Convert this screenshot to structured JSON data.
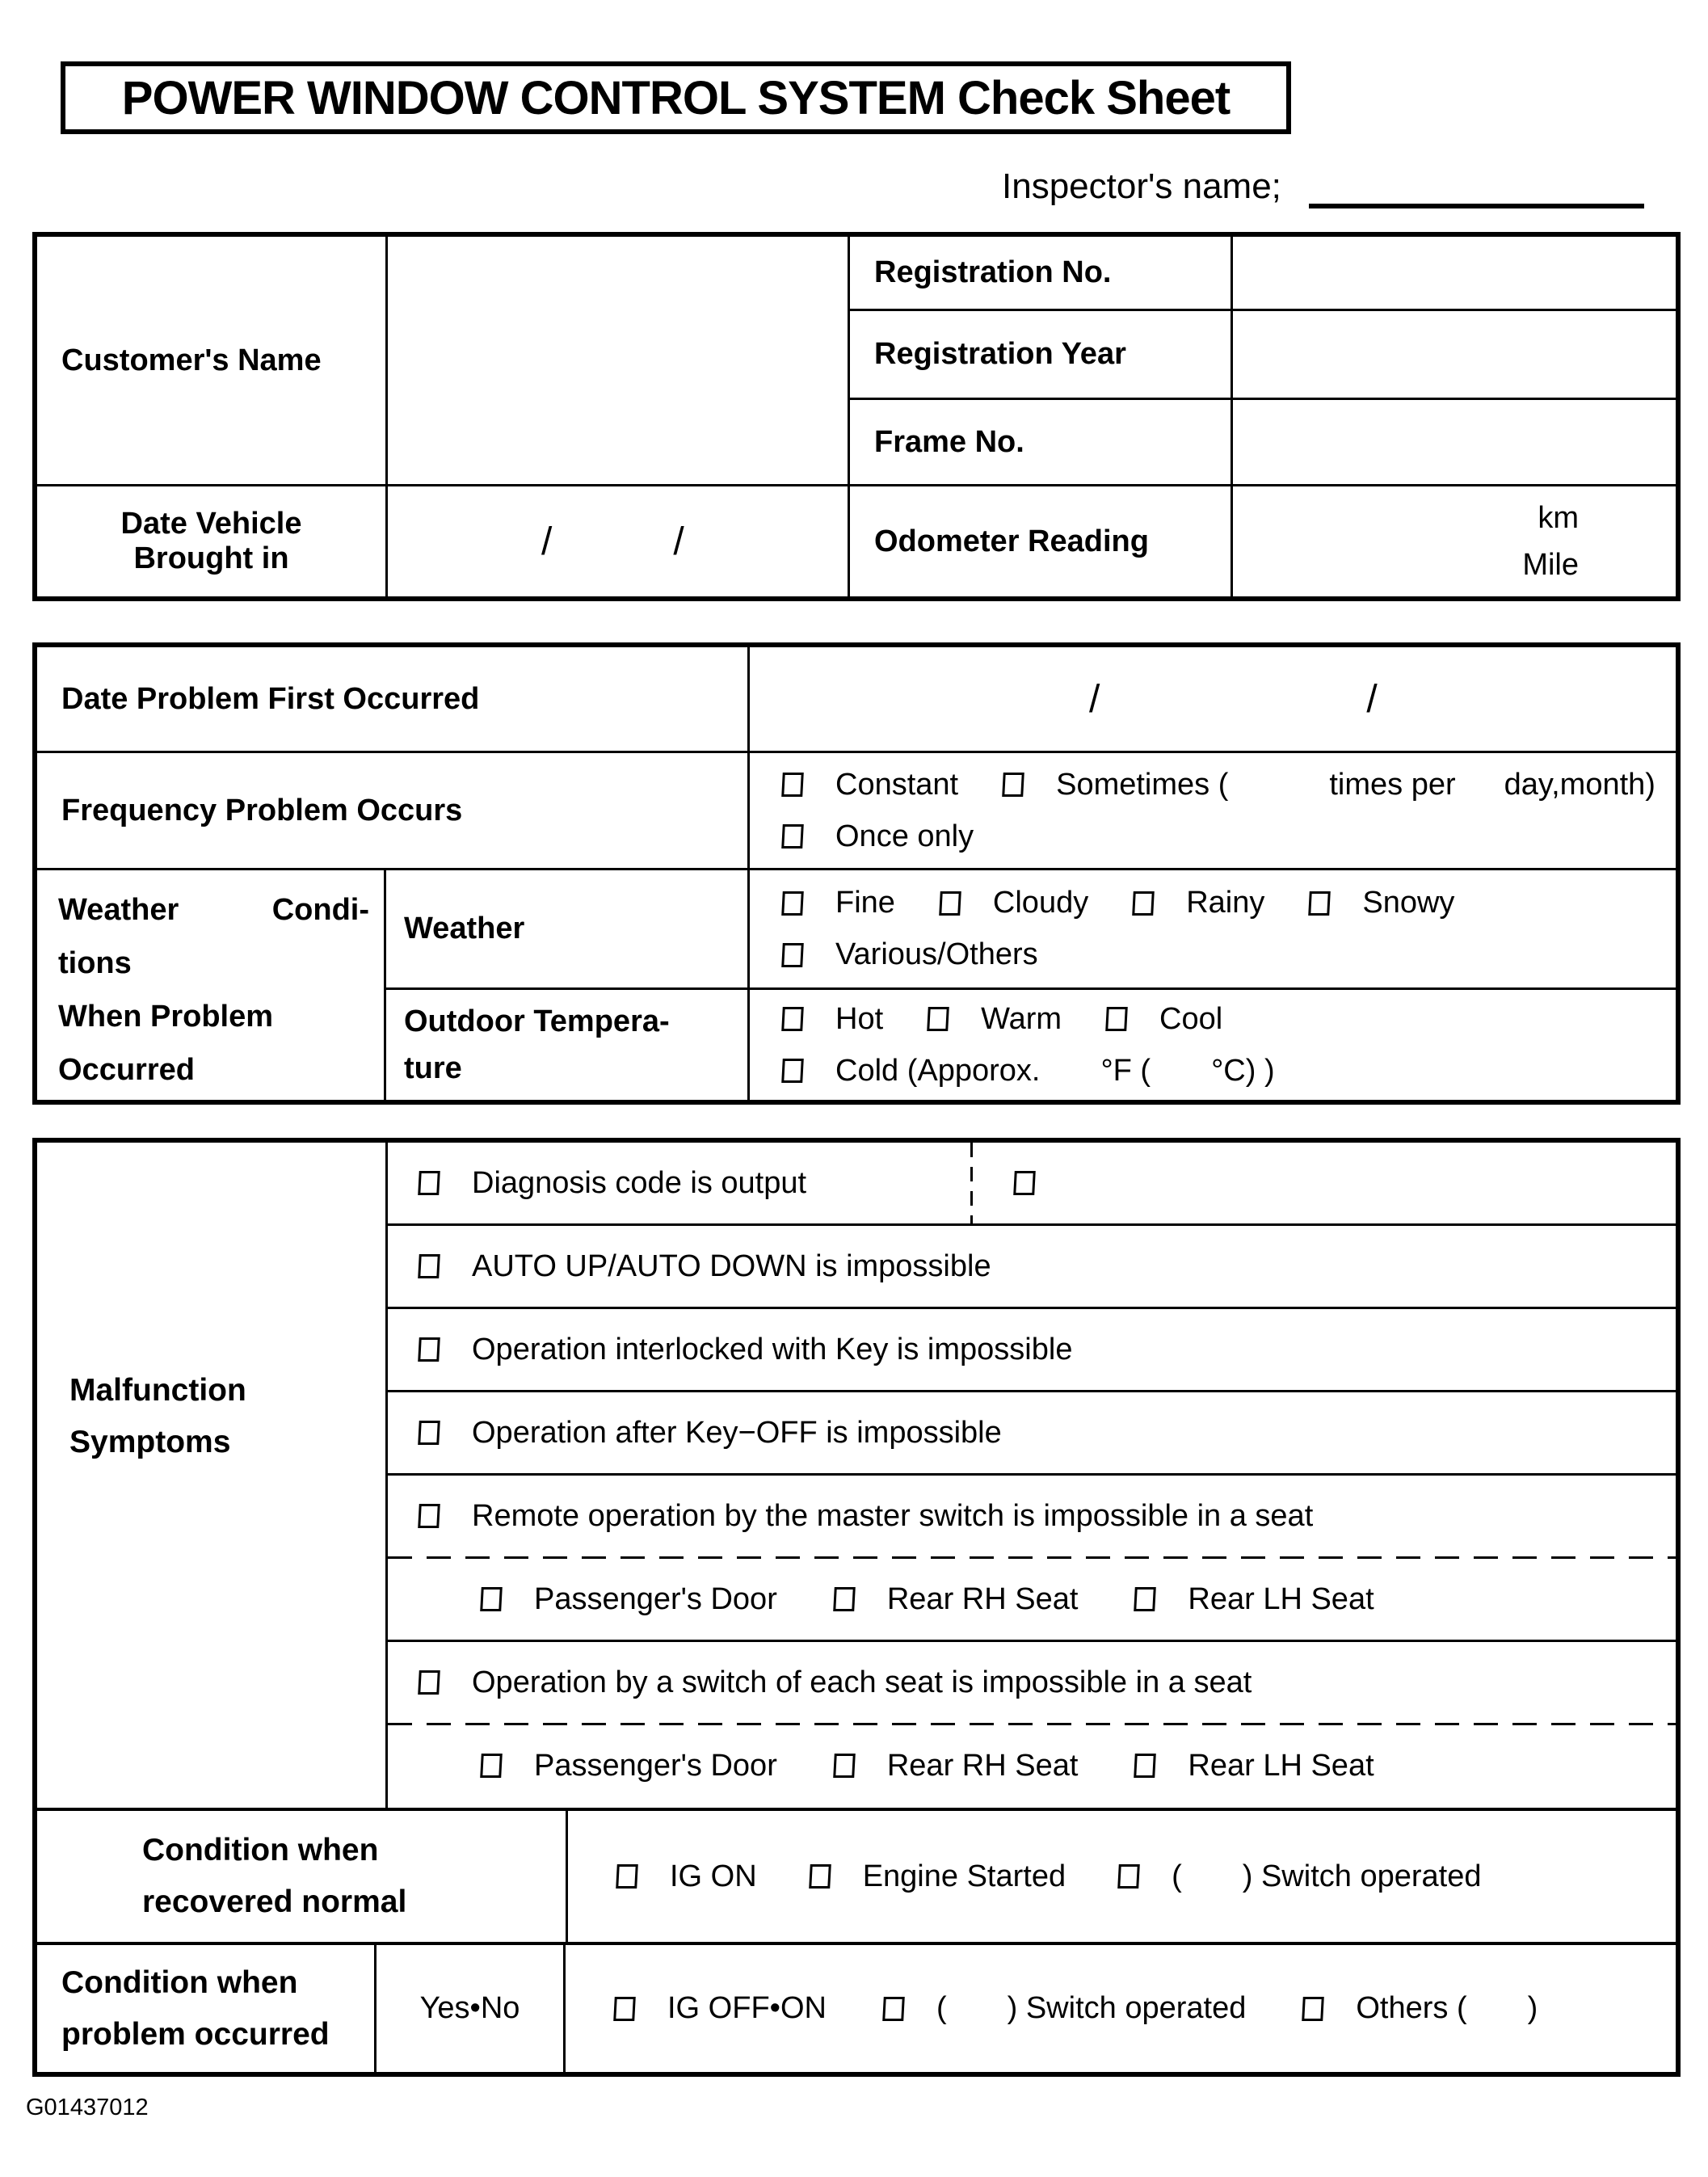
{
  "title": "POWER WINDOW CONTROL SYSTEM Check Sheet",
  "inspector_label": "Inspector's name;",
  "vehicle": {
    "customer_name": "Customer's Name",
    "registration_no": "Registration No.",
    "registration_year": "Registration Year",
    "frame_no": "Frame No.",
    "date_brought_line1": "Date Vehicle",
    "date_brought_line2": "Brought in",
    "slash1": "/",
    "slash2": "/",
    "odometer": "Odometer Reading",
    "unit_km": "km",
    "unit_mile": "Mile"
  },
  "problem": {
    "date_first": "Date Problem First Occurred",
    "slash1": "/",
    "slash2": "/",
    "frequency_label": "Frequency Problem Occurs",
    "freq_constant": "Constant",
    "freq_sometimes": "Sometimes (",
    "freq_times_per": "times per",
    "freq_day_month": "day,month)",
    "freq_once": "Once only",
    "wcond_line1a": "Weather",
    "wcond_line1b": "Condi-",
    "wcond_line2": "tions",
    "wcond_line3": "When Problem",
    "wcond_line4": "Occurred",
    "weather_label": "Weather",
    "weather_fine": "Fine",
    "weather_cloudy": "Cloudy",
    "weather_rainy": "Rainy",
    "weather_snowy": "Snowy",
    "weather_various": "Various/Others",
    "temp_label_line1": "Outdoor Tempera-",
    "temp_label_line2": "ture",
    "temp_hot": "Hot",
    "temp_warm": "Warm",
    "temp_cool": "Cool",
    "temp_cold": "Cold (Apporox.",
    "temp_f": "°F (",
    "temp_c": "°C) )"
  },
  "symptoms": {
    "label_line1": "Malfunction",
    "label_line2": "Symptoms",
    "row1": "Diagnosis code is output",
    "row2": "AUTO UP/AUTO DOWN is impossible",
    "row3": "Operation interlocked with Key is impossible",
    "row4": "Operation after Key−OFF is impossible",
    "row5": "Remote operation by the master switch is impossible in a seat",
    "row6_seat1": "Passenger's Door",
    "row6_seat2": "Rear RH Seat",
    "row6_seat3": "Rear LH Seat",
    "row7": "Operation by a switch of each seat is impossible in a seat",
    "row8_seat1": "Passenger's Door",
    "row8_seat2": "Rear RH Seat",
    "row8_seat3": "Rear LH Seat"
  },
  "recovered": {
    "label_line1": "Condition when",
    "label_line2": "recovered normal",
    "opt_ig_on": "IG ON",
    "opt_engine": "Engine Started",
    "opt_switch_open": "(",
    "opt_switch_rest": ") Switch operated"
  },
  "occurred": {
    "label_line1": "Condition when",
    "label_line2": "problem occurred",
    "yes_no": "Yes•No",
    "opt_ig_offon": "IG OFF•ON",
    "opt_paren_open": "(",
    "opt_switch_rest": ") Switch operated",
    "opt_others": "Others (",
    "opt_others_close": ")"
  },
  "footer_code": "G01437012"
}
